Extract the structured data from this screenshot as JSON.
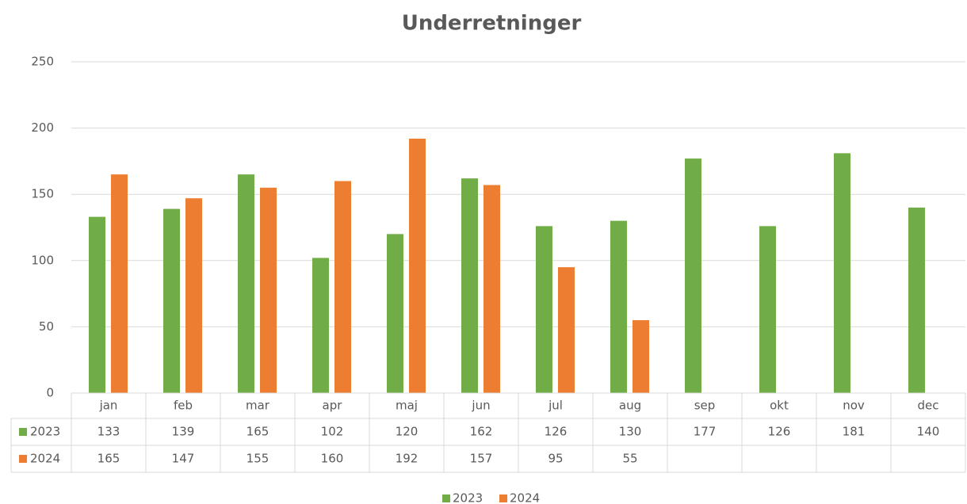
{
  "chart_data": {
    "type": "bar",
    "title": "Underretninger",
    "categories": [
      "jan",
      "feb",
      "mar",
      "apr",
      "maj",
      "jun",
      "jul",
      "aug",
      "sep",
      "okt",
      "nov",
      "dec"
    ],
    "series": [
      {
        "name": "2023",
        "color": "#70ad47",
        "values": [
          133,
          139,
          165,
          102,
          120,
          162,
          126,
          130,
          177,
          126,
          181,
          140
        ]
      },
      {
        "name": "2024",
        "color": "#ed7d31",
        "values": [
          165,
          147,
          155,
          160,
          192,
          157,
          95,
          55,
          null,
          null,
          null,
          null
        ]
      }
    ],
    "ylim": [
      0,
      250
    ],
    "yticks": [
      0,
      50,
      100,
      150,
      200,
      250
    ],
    "grid": true,
    "legend": "bottom",
    "data_table": true
  }
}
